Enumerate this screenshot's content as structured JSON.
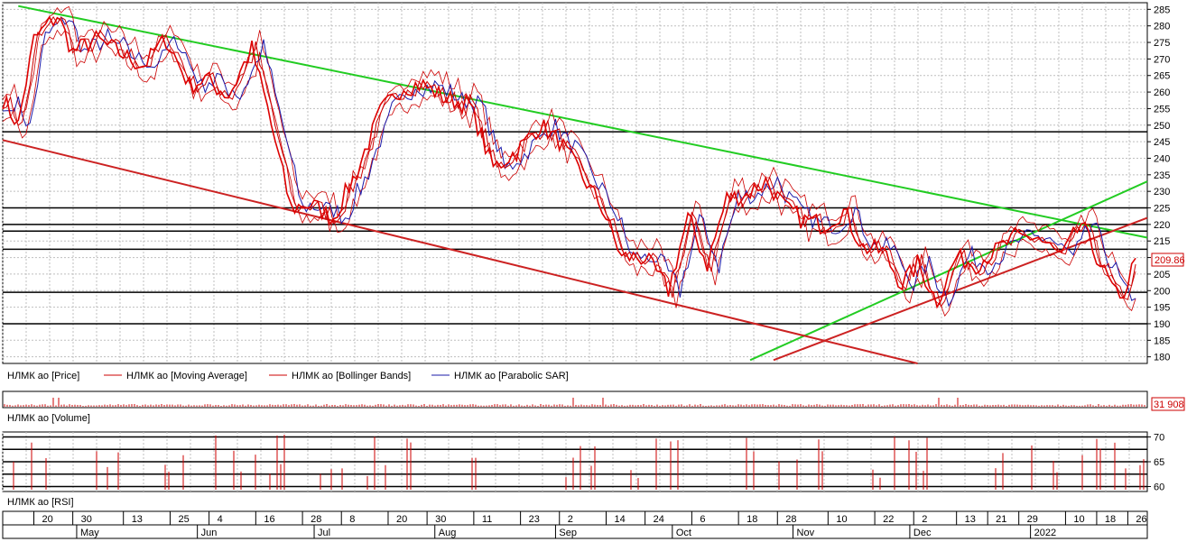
{
  "chart_data": [
    {
      "type": "line",
      "panel": "price",
      "ylim": [
        178,
        287
      ],
      "yticks": [
        180,
        185,
        190,
        195,
        200,
        205,
        210,
        215,
        220,
        225,
        230,
        235,
        240,
        245,
        250,
        255,
        260,
        265,
        270,
        275,
        280,
        285
      ],
      "grid": true,
      "legend": [
        {
          "name": "НЛМК ао [Price]",
          "color": "#cc0000"
        },
        {
          "name": "НЛМК ао [Moving Average]",
          "color": "#cc0000"
        },
        {
          "name": "НЛМК ао [Bollinger Bands]",
          "color": "#cc0000"
        },
        {
          "name": "НЛМК ао [Parabolic SAR]",
          "color": "#1a1aaa"
        }
      ],
      "last_value_label": "209.86",
      "horizontal_levels": [
        248,
        225,
        220,
        218,
        212.5,
        199.5,
        190
      ],
      "trendlines": [
        {
          "color": "#22cc22",
          "from": {
            "date": "2021-04-16",
            "value": 286
          },
          "to": {
            "date": "2022-01-31",
            "value": 216
          }
        },
        {
          "color": "#22cc22",
          "from": {
            "date": "2021-10-21",
            "value": 179
          },
          "to": {
            "date": "2022-01-31",
            "value": 233
          }
        },
        {
          "color": "#cc2222",
          "from": {
            "date": "2021-04-12",
            "value": 245.5
          },
          "to": {
            "date": "2021-12-03",
            "value": 178
          }
        },
        {
          "color": "#cc2222",
          "from": {
            "date": "2021-10-27",
            "value": 179
          },
          "to": {
            "date": "2022-01-31",
            "value": 222
          }
        }
      ],
      "series": [
        {
          "name": "Price",
          "color": "#cc0000",
          "x": [
            "2021-04-12",
            "2021-04-16",
            "2021-04-20",
            "2021-04-26",
            "2021-04-30",
            "2021-05-06",
            "2021-05-12",
            "2021-05-18",
            "2021-05-24",
            "2021-05-30",
            "2021-06-03",
            "2021-06-09",
            "2021-06-15",
            "2021-06-19",
            "2021-06-25",
            "2021-06-30",
            "2021-07-06",
            "2021-07-12",
            "2021-07-18",
            "2021-07-24",
            "2021-07-29",
            "2021-08-04",
            "2021-08-10",
            "2021-08-16",
            "2021-08-22",
            "2021-08-28",
            "2021-09-02",
            "2021-09-07",
            "2021-09-13",
            "2021-09-18",
            "2021-09-24",
            "2021-09-30",
            "2021-10-05",
            "2021-10-10",
            "2021-10-15",
            "2021-10-20",
            "2021-10-25",
            "2021-10-30",
            "2021-11-04",
            "2021-11-09",
            "2021-11-14",
            "2021-11-19",
            "2021-11-24",
            "2021-11-29",
            "2021-12-03",
            "2021-12-08",
            "2021-12-13",
            "2021-12-18",
            "2021-12-23",
            "2021-12-28",
            "2022-01-03",
            "2022-01-09",
            "2022-01-14",
            "2022-01-19",
            "2022-01-24",
            "2022-01-28"
          ],
          "values": [
            258,
            250,
            276,
            283,
            272,
            276,
            272,
            268,
            276,
            262,
            264,
            259,
            273,
            255,
            225,
            226,
            222,
            236,
            254,
            262,
            262,
            258,
            256,
            237,
            242,
            250,
            245,
            236,
            225,
            210,
            210,
            200,
            222,
            208,
            228,
            229,
            233,
            225,
            221,
            220,
            224,
            213,
            212,
            202,
            208,
            197,
            210,
            208,
            212,
            216,
            216,
            210,
            220,
            208,
            196,
            209.86
          ]
        },
        {
          "name": "Parabolic SAR",
          "color": "#1a1aaa",
          "x": [
            "2021-04-12",
            "2021-04-26",
            "2021-05-12",
            "2021-05-30",
            "2021-06-15",
            "2021-06-30",
            "2021-07-18",
            "2021-08-04",
            "2021-08-22",
            "2021-09-07",
            "2021-09-24",
            "2021-10-05",
            "2021-10-20",
            "2021-11-04",
            "2021-11-19",
            "2021-12-03",
            "2021-12-18",
            "2022-01-03",
            "2022-01-19",
            "2022-01-28"
          ],
          "values": [
            255,
            280,
            268,
            262,
            270,
            228,
            250,
            259,
            245,
            247,
            214,
            203,
            225,
            221,
            217,
            205,
            210,
            217,
            204,
            207
          ]
        }
      ]
    },
    {
      "type": "bar",
      "panel": "volume",
      "legend": [
        {
          "name": "НЛМК ао [Volume]",
          "color": "#cc0000"
        }
      ],
      "last_value_label": "31 908"
    },
    {
      "type": "line",
      "panel": "rsi",
      "ylim": [
        59,
        71
      ],
      "yticks": [
        60,
        65,
        70
      ],
      "horizontal_levels": [
        70,
        67.5,
        65,
        62.5,
        60
      ],
      "legend": [
        {
          "name": "НЛМК ао [RSI]",
          "color": "#cc0000"
        }
      ]
    }
  ],
  "time_axis": {
    "days": [
      "20",
      "30",
      "13",
      "25",
      "4",
      "16",
      "28",
      "8",
      "20",
      "30",
      "11",
      "23",
      "2",
      "14",
      "24",
      "6",
      "18",
      "28",
      "10",
      "22",
      "2",
      "13",
      "21",
      "29",
      "10",
      "18",
      "26"
    ],
    "months": [
      "May",
      "Jun",
      "Jul",
      "Aug",
      "Sep",
      "Oct",
      "Nov",
      "Dec",
      "2022"
    ]
  }
}
